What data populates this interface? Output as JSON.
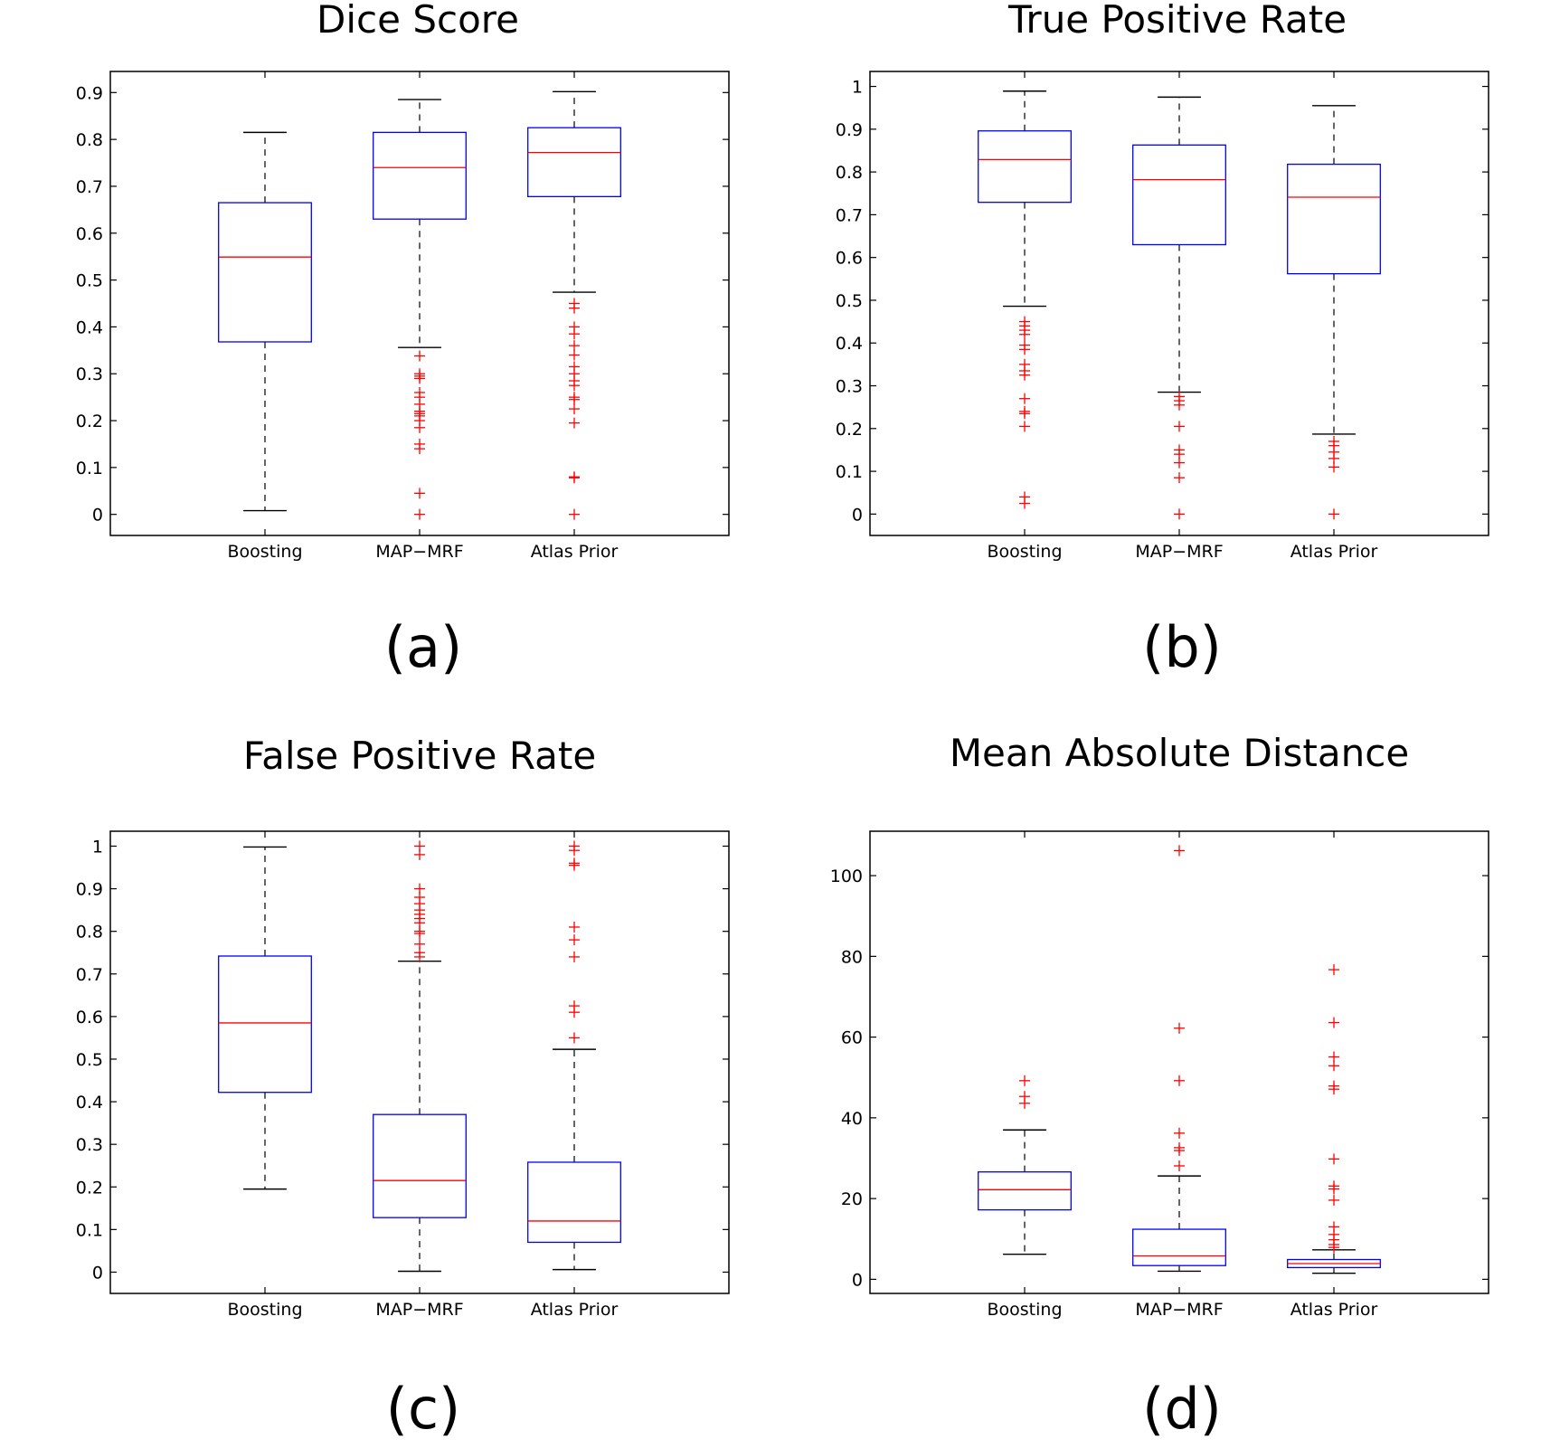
{
  "figure": {
    "panels": [
      {
        "id": "a",
        "label": "(a)",
        "title": "Dice Score"
      },
      {
        "id": "b",
        "label": "(b)",
        "title": "True Positive Rate"
      },
      {
        "id": "c",
        "label": "(c)",
        "title": "False Positive Rate"
      },
      {
        "id": "d",
        "label": "(d)",
        "title": "Mean Absolute Distance"
      }
    ]
  },
  "colors": {
    "box": "#0000ff",
    "median": "#ff0000",
    "whisker": "#000000",
    "outlier": "#ff0000",
    "frame": "#000000"
  },
  "chart_data": [
    {
      "type": "box",
      "title": "Dice Score",
      "categories": [
        "Boosting",
        "MAP−MRF",
        "Atlas Prior"
      ],
      "ylim": [
        -0.045,
        0.945
      ],
      "yticks": [
        0,
        0.1,
        0.2,
        0.3,
        0.4,
        0.5,
        0.6,
        0.7,
        0.8,
        0.9
      ],
      "ytick_labels": [
        "0",
        "0.1",
        "0.2",
        "0.3",
        "0.4",
        "0.5",
        "0.6",
        "0.7",
        "0.8",
        "0.9"
      ],
      "grid": false,
      "boxes": [
        {
          "category": "Boosting",
          "whisker_low": 0.008,
          "q1": 0.368,
          "median": 0.549,
          "q3": 0.665,
          "whisker_high": 0.815,
          "outliers": []
        },
        {
          "category": "MAP−MRF",
          "whisker_low": 0.356,
          "q1": 0.63,
          "median": 0.74,
          "q3": 0.815,
          "whisker_high": 0.885,
          "outliers": [
            0.338,
            0.3,
            0.295,
            0.29,
            0.26,
            0.25,
            0.235,
            0.22,
            0.215,
            0.21,
            0.2,
            0.185,
            0.15,
            0.14,
            0.045,
            0.0
          ]
        },
        {
          "category": "Atlas Prior",
          "whisker_low": 0.474,
          "q1": 0.678,
          "median": 0.772,
          "q3": 0.825,
          "whisker_high": 0.902,
          "outliers": [
            0.45,
            0.44,
            0.4,
            0.385,
            0.36,
            0.34,
            0.315,
            0.3,
            0.285,
            0.275,
            0.25,
            0.245,
            0.225,
            0.195,
            0.08,
            0.078,
            0.0
          ]
        }
      ]
    },
    {
      "type": "box",
      "title": "True Positive Rate",
      "categories": [
        "Boosting",
        "MAP−MRF",
        "Atlas Prior"
      ],
      "ylim": [
        -0.05,
        1.035
      ],
      "yticks": [
        0,
        0.1,
        0.2,
        0.3,
        0.4,
        0.5,
        0.6,
        0.7,
        0.8,
        0.9,
        1
      ],
      "ytick_labels": [
        "0",
        "0.1",
        "0.2",
        "0.3",
        "0.4",
        "0.5",
        "0.6",
        "0.7",
        "0.8",
        "0.9",
        "1"
      ],
      "grid": false,
      "boxes": [
        {
          "category": "Boosting",
          "whisker_low": 0.486,
          "q1": 0.729,
          "median": 0.829,
          "q3": 0.896,
          "whisker_high": 0.989,
          "outliers": [
            0.45,
            0.44,
            0.43,
            0.42,
            0.395,
            0.385,
            0.35,
            0.335,
            0.325,
            0.27,
            0.24,
            0.235,
            0.205,
            0.04,
            0.025
          ]
        },
        {
          "category": "MAP−MRF",
          "whisker_low": 0.285,
          "q1": 0.63,
          "median": 0.782,
          "q3": 0.863,
          "whisker_high": 0.975,
          "outliers": [
            0.275,
            0.265,
            0.255,
            0.205,
            0.15,
            0.14,
            0.12,
            0.085,
            0.0
          ]
        },
        {
          "category": "Atlas Prior",
          "whisker_low": 0.187,
          "q1": 0.562,
          "median": 0.741,
          "q3": 0.818,
          "whisker_high": 0.955,
          "outliers": [
            0.17,
            0.16,
            0.145,
            0.13,
            0.11,
            0.0
          ]
        }
      ]
    },
    {
      "type": "box",
      "title": "False Positive Rate",
      "categories": [
        "Boosting",
        "MAP−MRF",
        "Atlas Prior"
      ],
      "ylim": [
        -0.05,
        1.035
      ],
      "yticks": [
        0,
        0.1,
        0.2,
        0.3,
        0.4,
        0.5,
        0.6,
        0.7,
        0.8,
        0.9,
        1
      ],
      "ytick_labels": [
        "0",
        "0.1",
        "0.2",
        "0.3",
        "0.4",
        "0.5",
        "0.6",
        "0.7",
        "0.8",
        "0.9",
        "1"
      ],
      "grid": false,
      "boxes": [
        {
          "category": "Boosting",
          "whisker_low": 0.195,
          "q1": 0.422,
          "median": 0.585,
          "q3": 0.742,
          "whisker_high": 0.998,
          "outliers": []
        },
        {
          "category": "MAP−MRF",
          "whisker_low": 0.002,
          "q1": 0.128,
          "median": 0.215,
          "q3": 0.37,
          "whisker_high": 0.73,
          "outliers": [
            1.0,
            0.98,
            0.9,
            0.88,
            0.865,
            0.85,
            0.84,
            0.83,
            0.82,
            0.8,
            0.795,
            0.77,
            0.75,
            0.74
          ]
        },
        {
          "category": "Atlas Prior",
          "whisker_low": 0.006,
          "q1": 0.07,
          "median": 0.12,
          "q3": 0.258,
          "whisker_high": 0.523,
          "outliers": [
            1.0,
            0.99,
            0.96,
            0.955,
            0.81,
            0.78,
            0.74,
            0.625,
            0.61,
            0.55
          ]
        }
      ]
    },
    {
      "type": "box",
      "title": "Mean Absolute Distance",
      "categories": [
        "Boosting",
        "MAP−MRF",
        "Atlas Prior"
      ],
      "ylim": [
        -3.5,
        111
      ],
      "yticks": [
        0,
        20,
        40,
        60,
        80,
        100
      ],
      "ytick_labels": [
        "0",
        "20",
        "40",
        "60",
        "80",
        "100"
      ],
      "grid": false,
      "boxes": [
        {
          "category": "Boosting",
          "whisker_low": 6.2,
          "q1": 17.2,
          "median": 22.2,
          "q3": 26.6,
          "whisker_high": 37.0,
          "outliers": [
            49.2,
            45.3,
            43.6
          ]
        },
        {
          "category": "MAP−MRF",
          "whisker_low": 2.0,
          "q1": 3.4,
          "median": 5.8,
          "q3": 12.4,
          "whisker_high": 25.6,
          "outliers": [
            106.2,
            62.2,
            49.2,
            36.2,
            32.6,
            31.9,
            28.1
          ]
        },
        {
          "category": "Atlas Prior",
          "whisker_low": 1.5,
          "q1": 2.9,
          "median": 3.9,
          "q3": 4.9,
          "whisker_high": 7.3,
          "outliers": [
            76.7,
            63.6,
            55.1,
            52.9,
            47.9,
            47.1,
            29.8,
            23.1,
            22.4,
            19.6,
            13.0,
            11.1,
            9.8,
            8.6,
            7.9
          ]
        }
      ]
    }
  ]
}
